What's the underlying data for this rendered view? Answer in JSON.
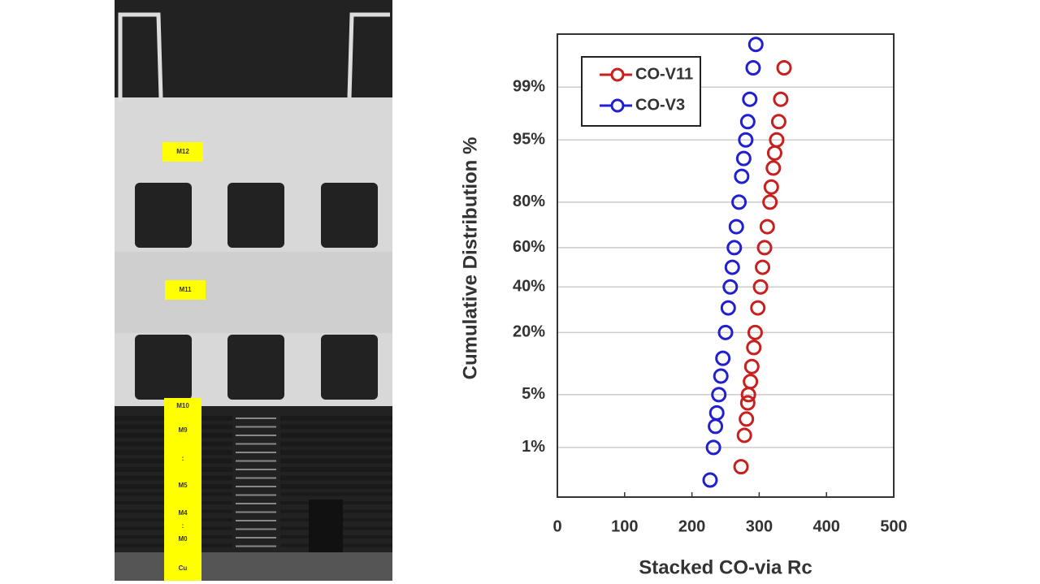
{
  "image_labels": [
    "M12",
    "M11",
    "M10",
    "M9",
    ":",
    "M5",
    "M4",
    ":",
    "M0",
    "Cu"
  ],
  "chart_data": {
    "type": "scatter",
    "x_label": "Stacked CO-via Rc",
    "y_label": "Cumulative Distribution %",
    "yscale": "probability",
    "xlim": [
      0,
      500
    ],
    "xticks": [
      0,
      100,
      200,
      300,
      400,
      500
    ],
    "ylim": [
      0.15,
      99.87
    ],
    "yticks": [
      {
        "value": 1,
        "label": "1%"
      },
      {
        "value": 5,
        "label": "5%"
      },
      {
        "value": 20,
        "label": "20%"
      },
      {
        "value": 40,
        "label": "40%"
      },
      {
        "value": 60,
        "label": "60%"
      },
      {
        "value": 80,
        "label": "80%"
      },
      {
        "value": 95,
        "label": "95%"
      },
      {
        "value": 99,
        "label": "99%"
      }
    ],
    "grid": true,
    "legend": "upper left",
    "marker": "hollow-circle",
    "series": [
      {
        "name": "CO-V11",
        "color": "#c8201e",
        "x": [
          273,
          278,
          281,
          283,
          284,
          287,
          289,
          292,
          294,
          298,
          302,
          305,
          308,
          312,
          316,
          318,
          321,
          323,
          326,
          329,
          332,
          337
        ],
        "values": [
          0.5,
          1.5,
          2.5,
          4,
          5,
          7,
          10,
          15,
          20,
          30,
          40,
          50,
          60,
          70,
          80,
          85,
          90,
          93,
          95,
          97,
          98.5,
          99.5
        ]
      },
      {
        "name": "CO-V3",
        "color": "#2020d0",
        "x": [
          227,
          232,
          235,
          237,
          240,
          243,
          246,
          250,
          254,
          257,
          260,
          263,
          266,
          270,
          274,
          277,
          280,
          283,
          286,
          291,
          295
        ],
        "values": [
          0.3,
          1,
          2,
          3,
          5,
          8,
          12,
          20,
          30,
          40,
          50,
          60,
          70,
          80,
          88,
          92,
          95,
          97,
          98.5,
          99.5,
          99.8
        ]
      }
    ]
  }
}
